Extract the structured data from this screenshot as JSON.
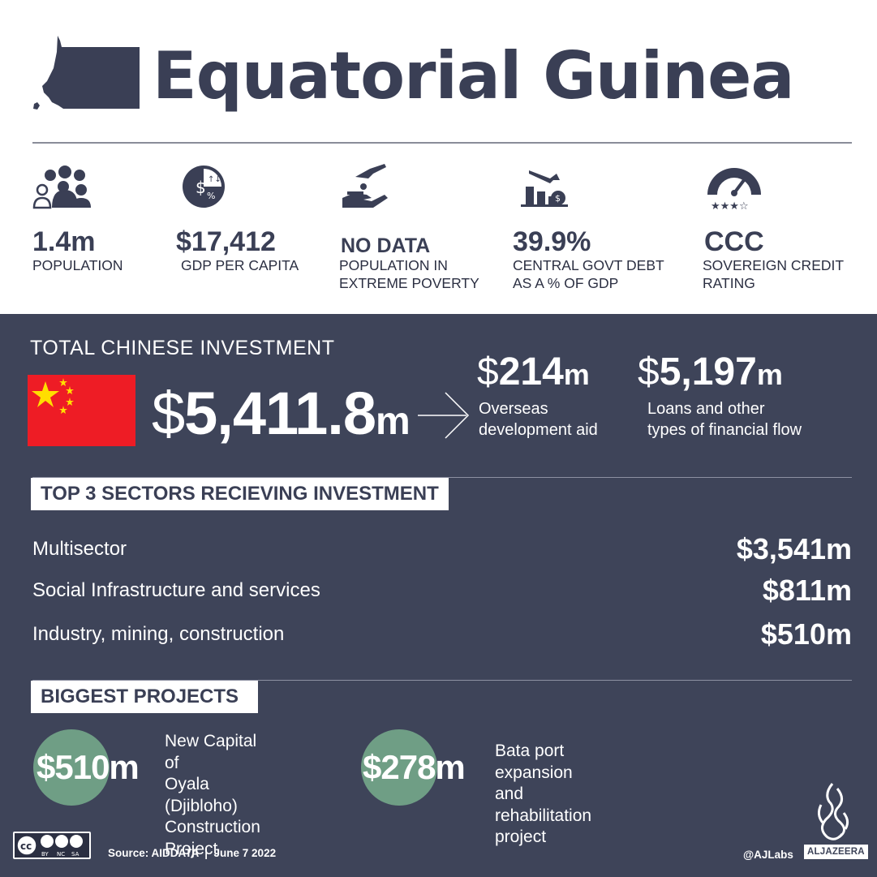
{
  "header": {
    "title": "Equatorial Guinea",
    "map_icon": "equatorial-guinea-map-icon"
  },
  "stats": [
    {
      "icon": "population-icon",
      "value": "1.4m",
      "label": "POPULATION"
    },
    {
      "icon": "gdp-coin-icon",
      "value": "$17,412",
      "label": "GDP PER CAPITA"
    },
    {
      "icon": "hand-giving-icon",
      "value": "NO DATA",
      "label": "POPULATION IN\nEXTREME POVERTY"
    },
    {
      "icon": "debt-chart-icon",
      "value": "39.9%",
      "label": "CENTRAL GOVT DEBT\nAS A % OF GDP"
    },
    {
      "icon": "credit-gauge-icon",
      "value": "CCC",
      "label": "SOVEREIGN CREDIT\nRATING"
    }
  ],
  "investment": {
    "title": "TOTAL CHINESE INVESTMENT",
    "currency": "$",
    "total_number": "5,411.8",
    "total_unit": "m",
    "aid": {
      "currency": "$",
      "number": "214",
      "unit": "m",
      "label": "Overseas\ndevelopment aid"
    },
    "loans": {
      "currency": "$",
      "number": "5,197",
      "unit": "m",
      "label": "Loans and other\ntypes of financial flow"
    }
  },
  "sectors": {
    "title": "TOP 3 SECTORS RECIEVING INVESTMENT",
    "rows": [
      {
        "name": "Multisector",
        "value": "$3,541m"
      },
      {
        "name": "Social Infrastructure and services",
        "value": "$811m"
      },
      {
        "name": "Industry, mining, construction",
        "value": "$510m"
      }
    ]
  },
  "projects": {
    "title": "BIGGEST PROJECTS",
    "items": [
      {
        "value": "$510m",
        "label": "New Capital of\nOyala (Djibloho)\nConstruction\nProject"
      },
      {
        "value": "$278m",
        "label": "Bata port expansion\nand rehabilitation\nproject"
      }
    ]
  },
  "footer": {
    "cc_text": [
      "BY",
      "NC",
      "SA"
    ],
    "source": "Source: AIDDATA  |  June 7 2022",
    "handle": "@AJLabs",
    "brand": "ALJAZEERA"
  },
  "colors": {
    "dark": "#3e4459",
    "title": "#3a3f55",
    "accent_green": "#6f9e85",
    "flag_red": "#ee1c25",
    "flag_yellow": "#ffde00"
  }
}
